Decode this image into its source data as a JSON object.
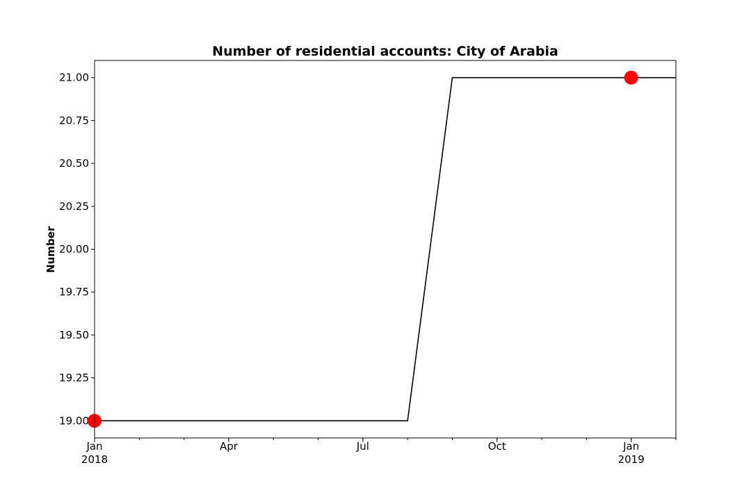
{
  "chart_data": {
    "type": "line",
    "title": "Number of residential accounts: City of Arabia",
    "xlabel": "",
    "ylabel": "Number",
    "x": [
      "2018-01",
      "2018-02",
      "2018-03",
      "2018-04",
      "2018-05",
      "2018-06",
      "2018-07",
      "2018-08",
      "2018-09",
      "2018-10",
      "2018-11",
      "2018-12",
      "2019-01",
      "2019-02"
    ],
    "series": [
      {
        "values": [
          19,
          19,
          19,
          19,
          19,
          19,
          19,
          19,
          21,
          21,
          21,
          21,
          21,
          21
        ],
        "color": "#000000"
      }
    ],
    "highlight_points": [
      {
        "x": "2018-01",
        "y": 19,
        "color": "#ff0000"
      },
      {
        "x": "2019-01",
        "y": 21,
        "color": "#ff0000"
      }
    ],
    "xlim": [
      "2018-01",
      "2019-02"
    ],
    "ylim": [
      18.9,
      21.1
    ],
    "yticks": [
      19.0,
      19.25,
      19.5,
      19.75,
      20.0,
      20.25,
      20.5,
      20.75,
      21.0
    ],
    "ytick_labels": [
      "19.00",
      "19.25",
      "19.50",
      "19.75",
      "20.00",
      "20.25",
      "20.50",
      "20.75",
      "21.00"
    ],
    "xticks_major": [
      {
        "x": "2018-01",
        "label": "Jan",
        "sublabel": "2018"
      },
      {
        "x": "2018-04",
        "label": "Apr",
        "sublabel": ""
      },
      {
        "x": "2018-07",
        "label": "Jul",
        "sublabel": ""
      },
      {
        "x": "2018-10",
        "label": "Oct",
        "sublabel": ""
      },
      {
        "x": "2019-01",
        "label": "Jan",
        "sublabel": "2019"
      }
    ],
    "grid": false,
    "legend": "none"
  }
}
